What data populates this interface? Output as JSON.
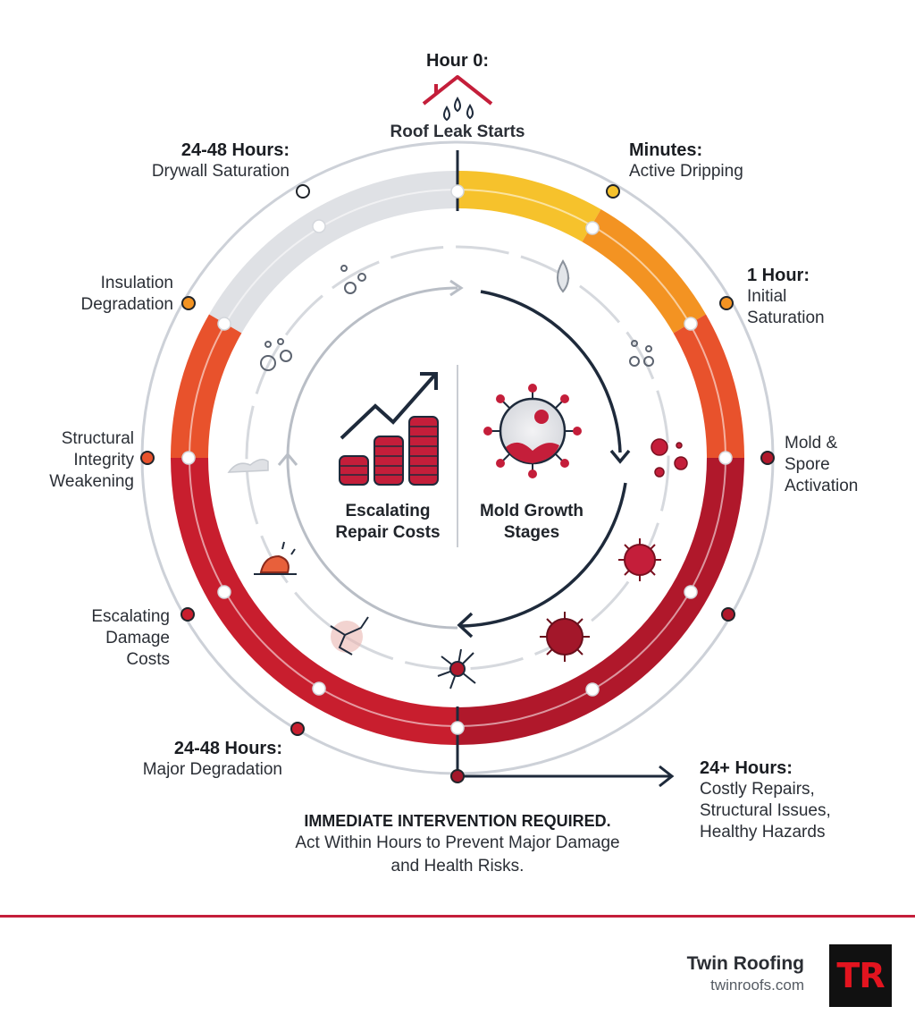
{
  "stages": {
    "hour0": {
      "title": "Hour 0:",
      "text": "Roof Leak Starts"
    },
    "minutes": {
      "title": "Minutes:",
      "text": "Active Dripping"
    },
    "hour1": {
      "title": "1 Hour:",
      "text_1": "Initial",
      "text_2": "Saturation"
    },
    "mold": {
      "line_1": "Mold &",
      "line_2": "Spore",
      "line_3": "Activation"
    },
    "drywall": {
      "title": "24-48 Hours:",
      "text": "Drywall Saturation"
    },
    "insulation": {
      "line_1": "Insulation",
      "line_2": "Degradation"
    },
    "structural": {
      "line_1": "Structural",
      "line_2": "Integrity",
      "line_3": "Weakening"
    },
    "escalating": {
      "line_1": "Escalating",
      "line_2": "Damage",
      "line_3": "Costs"
    },
    "major": {
      "title": "24-48 Hours:",
      "text": "Major Degradation"
    },
    "costly": {
      "title": "24+ Hours:",
      "line_1": "Costly Repairs,",
      "line_2": "Structural Issues,",
      "line_3": "Healthy Hazards"
    }
  },
  "center": {
    "left_line_1": "Escalating",
    "left_line_2": "Repair Costs",
    "right_line_1": "Mold Growth",
    "right_line_2": "Stages"
  },
  "alert": {
    "heading": "IMMEDIATE INTERVENTION REQUIRED.",
    "line_1": "Act Within Hours to Prevent Major Damage",
    "line_2": "and Health Risks."
  },
  "brand": {
    "name": "Twin Roofing",
    "url": "twinroofs.com",
    "logo": "TR"
  },
  "colors": {
    "yellow": "#f6c22c",
    "orange": "#f39322",
    "red_orange": "#e8522c",
    "red": "#c81e2e",
    "dark_red": "#a3172a",
    "grey": "#dfe1e5",
    "navy": "#1e2a3b"
  },
  "icons": [
    "house-leak-icon",
    "water-drop-icon",
    "bubbles-icon",
    "virus-icon",
    "coins-chart-icon",
    "mold-cell-icon",
    "cracked-wall-icon",
    "arrow-right-icon"
  ]
}
